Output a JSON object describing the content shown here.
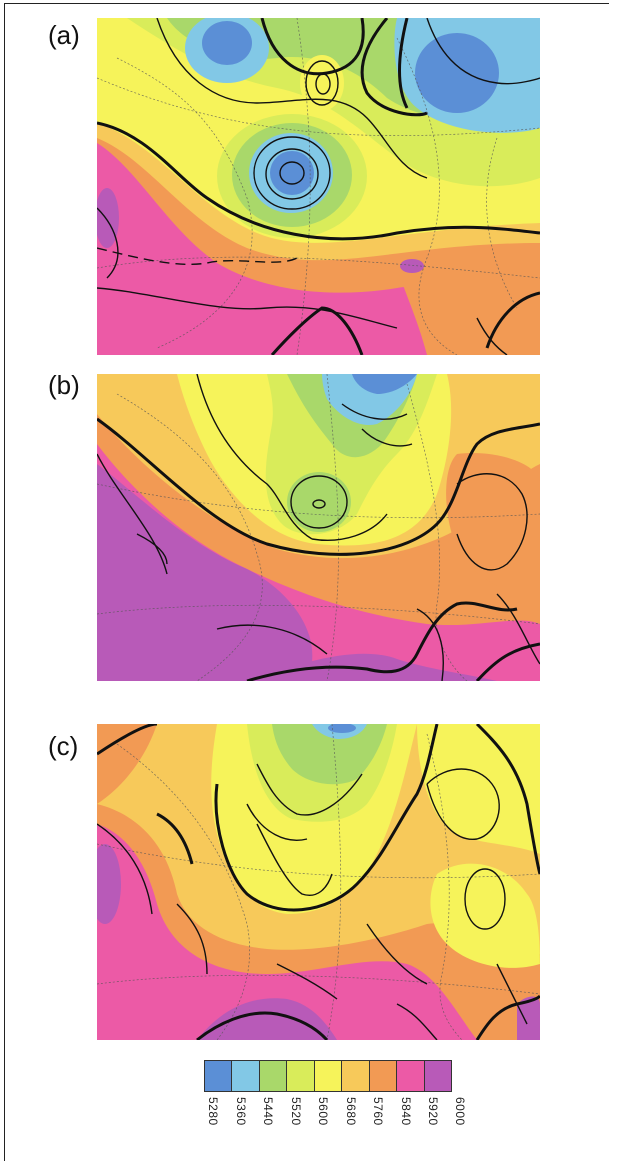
{
  "panels": [
    {
      "label": "(a)"
    },
    {
      "label": "(b)"
    },
    {
      "label": "(c)"
    }
  ],
  "colorbar": {
    "colors": [
      "#5b8fd6",
      "#82c8e6",
      "#a9d86a",
      "#d9ec5a",
      "#f6f35a",
      "#f7c95a",
      "#f29a54",
      "#ec5aa6",
      "#b85ab8"
    ],
    "tick_labels": [
      "5280",
      "5360",
      "5440",
      "5520",
      "5600",
      "5680",
      "5760",
      "5840",
      "5920",
      "6000"
    ]
  }
}
